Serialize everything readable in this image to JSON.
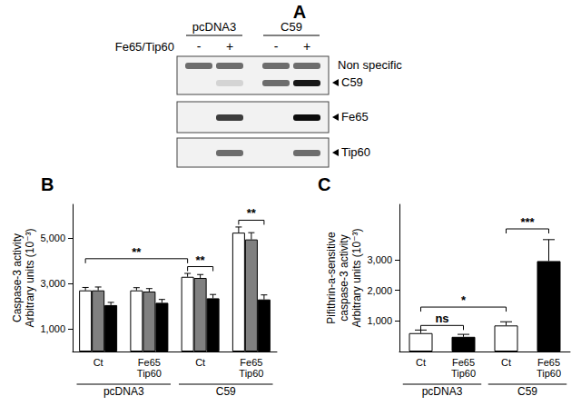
{
  "blot": {
    "title": "A",
    "row_label": "Fe65/Tip60",
    "lanes": [
      {
        "group": "pcDNA3",
        "treatments": [
          "-",
          "+"
        ]
      },
      {
        "group": "C59",
        "treatments": [
          "-",
          "+"
        ]
      }
    ],
    "bands": [
      "Non specific",
      "C59",
      "Fe65",
      "Tip60"
    ]
  },
  "chart_data": [
    {
      "title": "B",
      "type": "bar",
      "ylabel": "Caspase-3 activity\nArbitrary units (10⁻³)",
      "categories": [
        "Ct",
        "Fe65\nTip60",
        "Ct",
        "Fe65\nTip60"
      ],
      "groups": [
        {
          "label": "pcDNA3",
          "size": 2
        },
        {
          "label": "C59",
          "size": 2
        }
      ],
      "series": [
        {
          "color": "#ffffff",
          "values": [
            2700,
            2700,
            3300,
            5250
          ],
          "errors": [
            130,
            120,
            150,
            250
          ]
        },
        {
          "color": "#808080",
          "values": [
            2700,
            2650,
            3250,
            4950
          ],
          "errors": [
            150,
            130,
            150,
            300
          ]
        },
        {
          "color": "#000000",
          "values": [
            2050,
            2150,
            2350,
            2300
          ],
          "errors": [
            120,
            150,
            170,
            200
          ]
        }
      ],
      "ylim": [
        0,
        6500
      ],
      "yticks": [
        1000,
        3000,
        5000
      ],
      "annotations": [
        {
          "text": "**",
          "from": [
            0,
            0
          ],
          "to": [
            2,
            0
          ],
          "y": 4100
        },
        {
          "text": "**",
          "from": [
            2,
            0
          ],
          "to": [
            2,
            2
          ],
          "y": 3750
        },
        {
          "text": "**",
          "from": [
            3,
            0
          ],
          "to": [
            3,
            2
          ],
          "y": 5800
        }
      ]
    },
    {
      "title": "C",
      "type": "bar",
      "ylabel": "Pifithrin-a-sensitive\ncaspase-3 activity\nArbitrary units (10⁻³)",
      "categories": [
        "Ct",
        "Fe65\nTip60",
        "Ct",
        "Fe65\nTip60"
      ],
      "groups": [
        {
          "label": "pcDNA3",
          "size": 2
        },
        {
          "label": "C59",
          "size": 2
        }
      ],
      "values": [
        600,
        480,
        850,
        2950
      ],
      "errors": [
        100,
        80,
        120,
        700
      ],
      "colors": [
        "#ffffff",
        "#000000",
        "#ffffff",
        "#000000"
      ],
      "ylim": [
        0,
        4800
      ],
      "yticks": [
        1000,
        2000,
        3000
      ],
      "annotations": [
        {
          "text": "ns",
          "from": [
            0,
            0
          ],
          "to": [
            1,
            0
          ],
          "y": 850
        },
        {
          "text": "*",
          "from": [
            0,
            0
          ],
          "to": [
            2,
            0
          ],
          "y": 1450
        },
        {
          "text": "***",
          "from": [
            2,
            0
          ],
          "to": [
            3,
            0
          ],
          "y": 4000
        }
      ]
    }
  ]
}
